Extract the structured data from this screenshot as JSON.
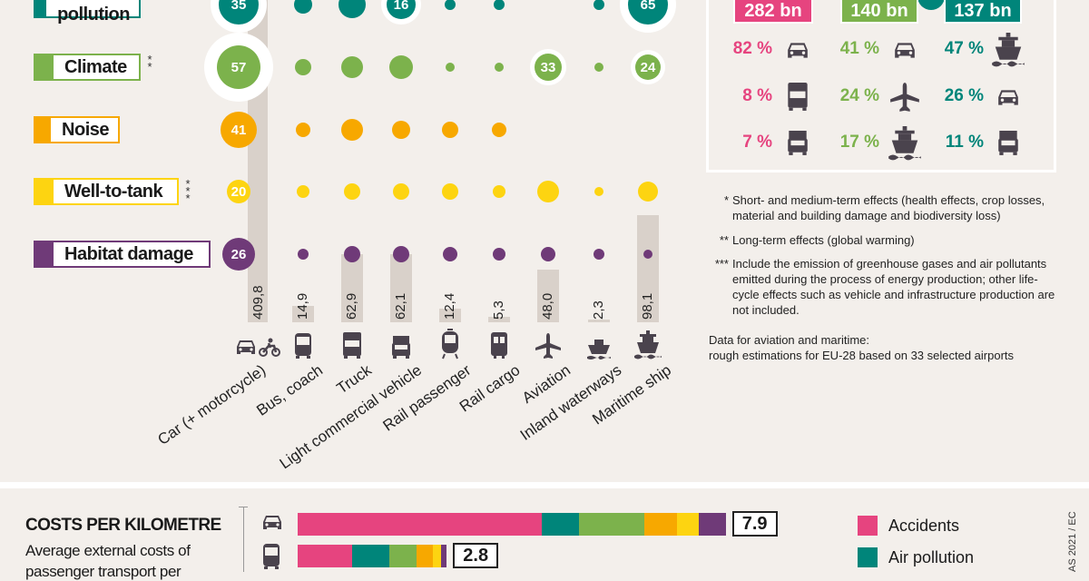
{
  "colors": {
    "air_pollution": "#00857a",
    "climate": "#7cb24c",
    "noise": "#f7a800",
    "well_to_tank": "#fdd411",
    "habitat_damage": "#6f3a78",
    "accidents": "#e6447f",
    "icon": "#4a434d"
  },
  "chart_data": [
    {
      "type": "bubble-matrix",
      "categories": [
        "Car (+ motorcycle)",
        "Bus, coach",
        "Truck",
        "Light commercial vehicle",
        "Rail passenger",
        "Rail cargo",
        "Aviation",
        "Inland waterways",
        "Maritime ship"
      ],
      "category_icons": [
        "car-motorcycle-icon",
        "bus-icon",
        "truck-icon",
        "van-icon",
        "tram-icon",
        "train-icon",
        "plane-icon",
        "barge-icon",
        "ship-icon"
      ],
      "series": [
        {
          "name": "Air pollution",
          "stars": "*",
          "color": "#00857a",
          "labels": [
            "35",
            null,
            null,
            "16",
            null,
            null,
            null,
            null,
            "65"
          ]
        },
        {
          "name": "Climate",
          "stars": "**",
          "color": "#7cb24c",
          "labels": [
            "57",
            null,
            null,
            null,
            null,
            null,
            "33",
            null,
            "24"
          ]
        },
        {
          "name": "Noise",
          "stars": "",
          "color": "#f7a800",
          "labels": [
            "41",
            null,
            null,
            null,
            null,
            null,
            null,
            null,
            null
          ]
        },
        {
          "name": "Well-to-tank",
          "stars": "***",
          "color": "#fdd411",
          "labels": [
            "20",
            null,
            null,
            null,
            null,
            null,
            null,
            null,
            null
          ]
        },
        {
          "name": "Habitat damage",
          "stars": "",
          "color": "#6f3a78",
          "labels": [
            "26",
            null,
            null,
            null,
            null,
            null,
            null,
            null,
            null
          ]
        }
      ]
    },
    {
      "type": "bar",
      "categories": [
        "Car (+ motorcycle)",
        "Bus, coach",
        "Truck",
        "Light commercial vehicle",
        "Rail passenger",
        "Rail cargo",
        "Aviation",
        "Inland waterways",
        "Maritime ship"
      ],
      "values": [
        409.8,
        14.9,
        62.9,
        62.1,
        12.4,
        5.3,
        48.0,
        2.3,
        98.1
      ],
      "value_labels": [
        "409,8",
        "14,9",
        "62,9",
        "62,1",
        "12,4",
        "5,3",
        "48,0",
        "2,3",
        "98,1"
      ]
    },
    {
      "type": "stacked-bar-horizontal",
      "title": "COSTS PER KILOMETRE",
      "subtitle": [
        "Average external costs of",
        "passenger transport per"
      ],
      "categories": [
        "car-icon",
        "bus-icon"
      ],
      "segments_order": [
        "Accidents",
        "Air pollution",
        "Climate",
        "Noise",
        "Well-to-tank",
        "Habitat damage"
      ],
      "values": [
        [
          4.5,
          0.7,
          1.2,
          0.6,
          0.4,
          0.5
        ],
        [
          1.0,
          0.7,
          0.5,
          0.3,
          0.15,
          0.1
        ]
      ],
      "totals": [
        "7.9",
        "2.8"
      ],
      "legend": [
        "Accidents",
        "Air pollution"
      ]
    }
  ],
  "totals_panel": {
    "columns": [
      {
        "total": "282 bn",
        "color": "#e6447f",
        "rows": [
          {
            "pct": "82 %",
            "icon": "car-icon"
          },
          {
            "pct": "8 %",
            "icon": "truck-icon"
          },
          {
            "pct": "7 %",
            "icon": "van-icon"
          }
        ]
      },
      {
        "total": "140 bn",
        "color": "#7cb24c",
        "rows": [
          {
            "pct": "41 %",
            "icon": "car-icon"
          },
          {
            "pct": "24 %",
            "icon": "plane-icon"
          },
          {
            "pct": "17 %",
            "icon": "ship-icon"
          }
        ]
      },
      {
        "total": "137 bn",
        "color": "#00857a",
        "rows": [
          {
            "pct": "47 %",
            "icon": "ship-icon"
          },
          {
            "pct": "26 %",
            "icon": "car-icon"
          },
          {
            "pct": "11 %",
            "icon": "van-icon"
          }
        ]
      }
    ]
  },
  "notes": [
    {
      "mark": "*",
      "text": "Short- and medium-term effects (health effects, crop losses, material and building damage and biodiversity loss)"
    },
    {
      "mark": "**",
      "text": "Long-term effects (global warming)"
    },
    {
      "mark": "***",
      "text": "Include the emission of greenhouse gases and air pollutants emitted during the process of energy production; other life-cycle effects such as vehicle and infrastructure production are not included."
    }
  ],
  "data_note": [
    "Data for aviation and maritime:",
    "rough estimations for EU-28 based on 33 selected airports"
  ],
  "credit": "AS 2021 / EC"
}
